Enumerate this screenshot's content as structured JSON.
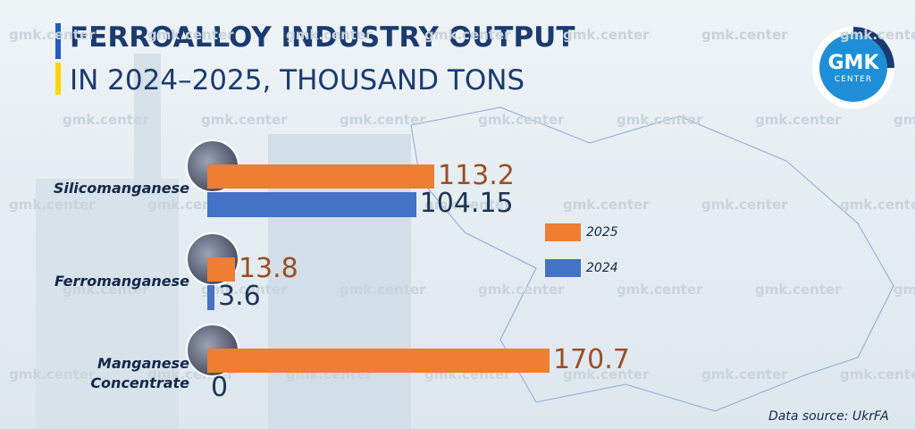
{
  "chart_data": {
    "type": "hbar",
    "title": "FERROALLOY INDUSTRY OUTPUT",
    "subtitle": "IN 2024–2025, THOUSAND TONS",
    "categories": [
      "Silicomanganese",
      "Ferromanganese",
      "Manganese\nConcentrate"
    ],
    "series": [
      {
        "name": "2025",
        "color": "#ef7d32",
        "label_color": "#9b4e24",
        "values": [
          113.2,
          13.8,
          170.7
        ]
      },
      {
        "name": "2024",
        "color": "#4472c4",
        "label_color": "#1d3557",
        "values": [
          104.15,
          3.6,
          0
        ]
      }
    ],
    "source": "Data source: UkrFA"
  },
  "logo": {
    "top": "GMK",
    "bottom": "CENTER"
  },
  "watermark": "gmk.center"
}
